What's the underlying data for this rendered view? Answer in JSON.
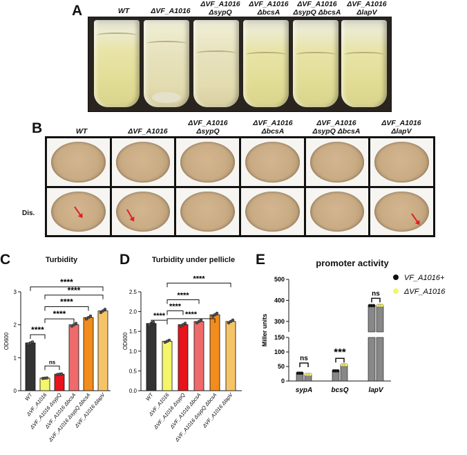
{
  "panels": {
    "a": "A",
    "b": "B",
    "c": "C",
    "d": "D",
    "e": "E"
  },
  "strains": [
    {
      "l1": "WT",
      "l2": ""
    },
    {
      "l1": "ΔVF_A1016",
      "l2": ""
    },
    {
      "l1": "ΔVF_A1016",
      "l2": "ΔsypQ"
    },
    {
      "l1": "ΔVF_A1016",
      "l2": "ΔbcsA"
    },
    {
      "l1": "ΔVF_A1016",
      "l2": "ΔsypQ ΔbcsA"
    },
    {
      "l1": "ΔVF_A1016",
      "l2": "ΔlapV"
    }
  ],
  "dis_label": "Dis.",
  "chart_data": [
    {
      "type": "bar",
      "title": "Turbidity",
      "ylabel": "OD600",
      "ylim": [
        0,
        3
      ],
      "yticks": [
        "0",
        "1",
        "2",
        "3"
      ],
      "categories": [
        "WT",
        "ΔVF_A1016",
        "ΔVF_A1016 ΔsypQ",
        "ΔVF_A1016 ΔbcsA",
        "ΔVF_A1016 ΔsypQ ΔbcsA",
        "ΔVF_A1016 ΔlapV"
      ],
      "values": [
        1.45,
        0.38,
        0.5,
        2.0,
        2.22,
        2.42
      ],
      "colors": [
        "#333333",
        "#f5f56a",
        "#e8141b",
        "#ef6b6b",
        "#f28c1c",
        "#f6c468"
      ],
      "significance": [
        "****",
        "ns",
        "****",
        "****",
        "****",
        "****"
      ]
    },
    {
      "type": "bar",
      "title": "Turbidity under pellicle",
      "ylabel": "OD600",
      "ylim": [
        0,
        2.5
      ],
      "yticks": [
        "0.0",
        "0.5",
        "1.0",
        "1.5",
        "2.0",
        "2.5"
      ],
      "categories": [
        "WT",
        "ΔVF_A1016",
        "ΔVF_A1016 ΔsypQ",
        "ΔVF_A1016 ΔbcsA",
        "ΔVF_A1016 ΔsypQ ΔbcsA",
        "ΔVF_A1016 ΔlapV"
      ],
      "values": [
        1.7,
        1.25,
        1.67,
        1.75,
        1.92,
        1.75
      ],
      "colors": [
        "#333333",
        "#f5f56a",
        "#e8141b",
        "#ef6b6b",
        "#f28c1c",
        "#f6c468"
      ],
      "significance": [
        "****",
        "****",
        "****",
        "****",
        "****"
      ]
    },
    {
      "type": "bar",
      "title": "promoter activity",
      "ylabel": "Miller units",
      "yticks": [
        "0",
        "50",
        "100",
        "150",
        "300",
        "400",
        "500"
      ],
      "categories": [
        "sypA",
        "bcsQ",
        "lapV"
      ],
      "series": [
        {
          "name": "VF_A1016+",
          "values": [
            27,
            35,
            375
          ],
          "color": "#888888",
          "dot": "#111111"
        },
        {
          "name": "ΔVF_A1016",
          "values": [
            22,
            55,
            375
          ],
          "color": "#888888",
          "dot": "#f5f56a"
        }
      ],
      "significance": [
        "ns",
        "***",
        "ns"
      ]
    }
  ]
}
